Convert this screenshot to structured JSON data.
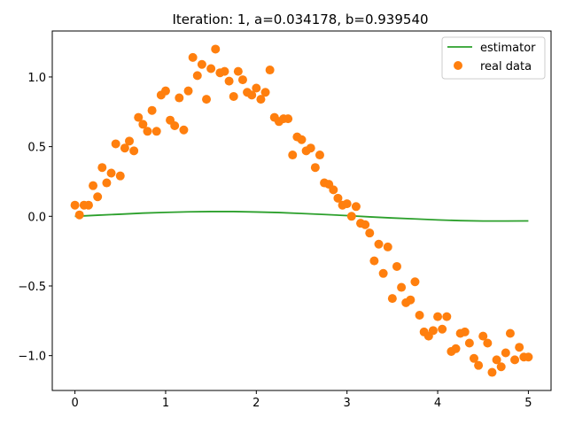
{
  "chart_data": {
    "type": "scatter",
    "title": "Iteration: 1, a=0.034178, b=0.939540",
    "xlabel": "",
    "ylabel": "",
    "xlim": [
      -0.25,
      5.25
    ],
    "ylim": [
      -1.25,
      1.33
    ],
    "x_ticks": [
      0,
      1,
      2,
      3,
      4,
      5
    ],
    "x_tick_labels": [
      "0",
      "1",
      "2",
      "3",
      "4",
      "5"
    ],
    "y_ticks": [
      -1.0,
      -0.5,
      0.0,
      0.5,
      1.0
    ],
    "y_tick_labels": [
      "−1.0",
      "−0.5",
      "0.0",
      "0.5",
      "1.0"
    ],
    "grid": false,
    "legend_position": "top-right",
    "series": [
      {
        "name": "estimator",
        "kind": "line",
        "color": "#2ca02c",
        "x": [
          0,
          0.25,
          0.5,
          0.75,
          1.0,
          1.25,
          1.5,
          1.75,
          2.0,
          2.25,
          2.5,
          2.75,
          3.0,
          3.25,
          3.5,
          3.75,
          4.0,
          4.25,
          4.5,
          4.75,
          5.0
        ],
        "y": [
          0,
          0.008,
          0.015,
          0.023,
          0.028,
          0.032,
          0.034,
          0.034,
          0.031,
          0.027,
          0.02,
          0.013,
          0.005,
          -0.004,
          -0.012,
          -0.019,
          -0.026,
          -0.031,
          -0.034,
          -0.034,
          -0.033
        ]
      },
      {
        "name": "real data",
        "kind": "scatter",
        "color": "#ff7f0e",
        "x": [
          0.0,
          0.05,
          0.1,
          0.15,
          0.2,
          0.25,
          0.3,
          0.35,
          0.4,
          0.45,
          0.5,
          0.55,
          0.6,
          0.65,
          0.7,
          0.75,
          0.8,
          0.85,
          0.9,
          0.95,
          1.0,
          1.05,
          1.1,
          1.15,
          1.2,
          1.25,
          1.3,
          1.35,
          1.4,
          1.45,
          1.5,
          1.55,
          1.6,
          1.65,
          1.7,
          1.75,
          1.8,
          1.85,
          1.9,
          1.95,
          2.0,
          2.05,
          2.1,
          2.15,
          2.2,
          2.25,
          2.3,
          2.35,
          2.4,
          2.45,
          2.5,
          2.55,
          2.6,
          2.65,
          2.7,
          2.75,
          2.8,
          2.85,
          2.9,
          2.95,
          3.0,
          3.05,
          3.1,
          3.15,
          3.2,
          3.25,
          3.3,
          3.35,
          3.4,
          3.45,
          3.5,
          3.55,
          3.6,
          3.65,
          3.7,
          3.75,
          3.8,
          3.85,
          3.9,
          3.95,
          4.0,
          4.05,
          4.1,
          4.15,
          4.2,
          4.25,
          4.3,
          4.35,
          4.4,
          4.45,
          4.5,
          4.55,
          4.6,
          4.65,
          4.7,
          4.75,
          4.8,
          4.85,
          4.9,
          4.95,
          5.0
        ],
        "y": [
          0.08,
          0.01,
          0.08,
          0.08,
          0.22,
          0.14,
          0.35,
          0.24,
          0.31,
          0.52,
          0.29,
          0.49,
          0.54,
          0.47,
          0.71,
          0.66,
          0.61,
          0.76,
          0.61,
          0.87,
          0.9,
          0.69,
          0.65,
          0.85,
          0.62,
          0.9,
          1.14,
          1.01,
          1.09,
          0.84,
          1.06,
          1.2,
          1.03,
          1.04,
          0.97,
          0.86,
          1.04,
          0.98,
          0.89,
          0.87,
          0.92,
          0.84,
          0.89,
          1.05,
          0.71,
          0.68,
          0.7,
          0.7,
          0.44,
          0.57,
          0.55,
          0.47,
          0.49,
          0.35,
          0.44,
          0.24,
          0.23,
          0.19,
          0.13,
          0.08,
          0.09,
          0.0,
          0.07,
          -0.05,
          -0.06,
          -0.12,
          -0.32,
          -0.2,
          -0.41,
          -0.22,
          -0.59,
          -0.36,
          -0.51,
          -0.62,
          -0.6,
          -0.47,
          -0.71,
          -0.83,
          -0.86,
          -0.82,
          -0.72,
          -0.81,
          -0.72,
          -0.97,
          -0.95,
          -0.84,
          -0.83,
          -0.91,
          -1.02,
          -1.07,
          -0.86,
          -0.91,
          -1.12,
          -1.03,
          -1.08,
          -0.98,
          -0.84,
          -1.03,
          -0.94,
          -1.01,
          -1.01
        ]
      }
    ]
  }
}
